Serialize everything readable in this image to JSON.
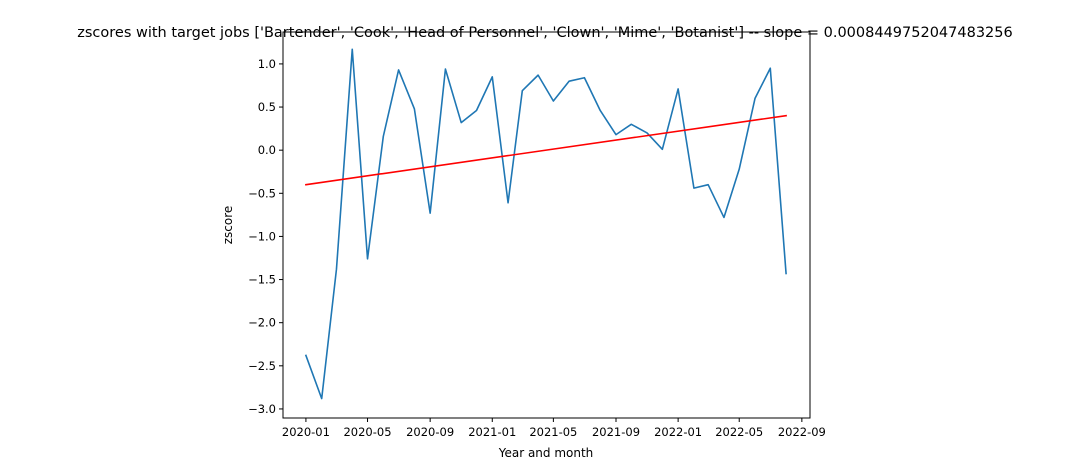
{
  "chart_data": {
    "type": "line",
    "title": "zscores with target jobs ['Bartender', 'Cook', 'Head of Personnel', 'Clown', 'Mime', 'Botanist'] -- slope = 0.0008449752047483256",
    "xlabel": "Year and month",
    "ylabel": "zscore",
    "x_ticks": [
      "2020-01",
      "2020-05",
      "2020-09",
      "2021-01",
      "2021-05",
      "2021-09",
      "2022-01",
      "2022-05",
      "2022-09"
    ],
    "y_ticks": [
      "1.0",
      "0.5",
      "0.0",
      "−0.5",
      "−1.0",
      "−1.5",
      "−2.0",
      "−2.5",
      "−3.0"
    ],
    "xlim": [
      "2019-11-17",
      "2022-09-17"
    ],
    "ylim": [
      -3.105,
      1.37
    ],
    "grid": false,
    "series": [
      {
        "color": "#1f77b4",
        "x": [
          "2020-01-01",
          "2020-02-01",
          "2020-03-01",
          "2020-04-01",
          "2020-05-01",
          "2020-06-01",
          "2020-07-01",
          "2020-08-01",
          "2020-09-01",
          "2020-10-01",
          "2020-11-01",
          "2020-12-01",
          "2021-01-01",
          "2021-02-01",
          "2021-03-01",
          "2021-04-01",
          "2021-05-01",
          "2021-06-01",
          "2021-07-01",
          "2021-08-01",
          "2021-09-01",
          "2021-10-01",
          "2021-11-01",
          "2021-12-01",
          "2022-01-01",
          "2022-02-01",
          "2022-03-01",
          "2022-04-01",
          "2022-05-01",
          "2022-06-01",
          "2022-07-01",
          "2022-08-01"
        ],
        "values": [
          -2.38,
          -2.88,
          -1.38,
          1.17,
          -1.26,
          0.16,
          0.93,
          0.48,
          -0.73,
          0.94,
          0.32,
          0.46,
          0.85,
          -0.61,
          0.69,
          0.87,
          0.57,
          0.8,
          0.84,
          0.46,
          0.18,
          0.3,
          0.2,
          0.01,
          0.71,
          -0.44,
          -0.4,
          -0.78,
          -0.22,
          0.6,
          0.95,
          -1.43
        ]
      },
      {
        "color": "#ff0000",
        "x": [
          "2020-01-01",
          "2022-08-01"
        ],
        "values": [
          -0.4,
          0.4
        ]
      }
    ]
  }
}
